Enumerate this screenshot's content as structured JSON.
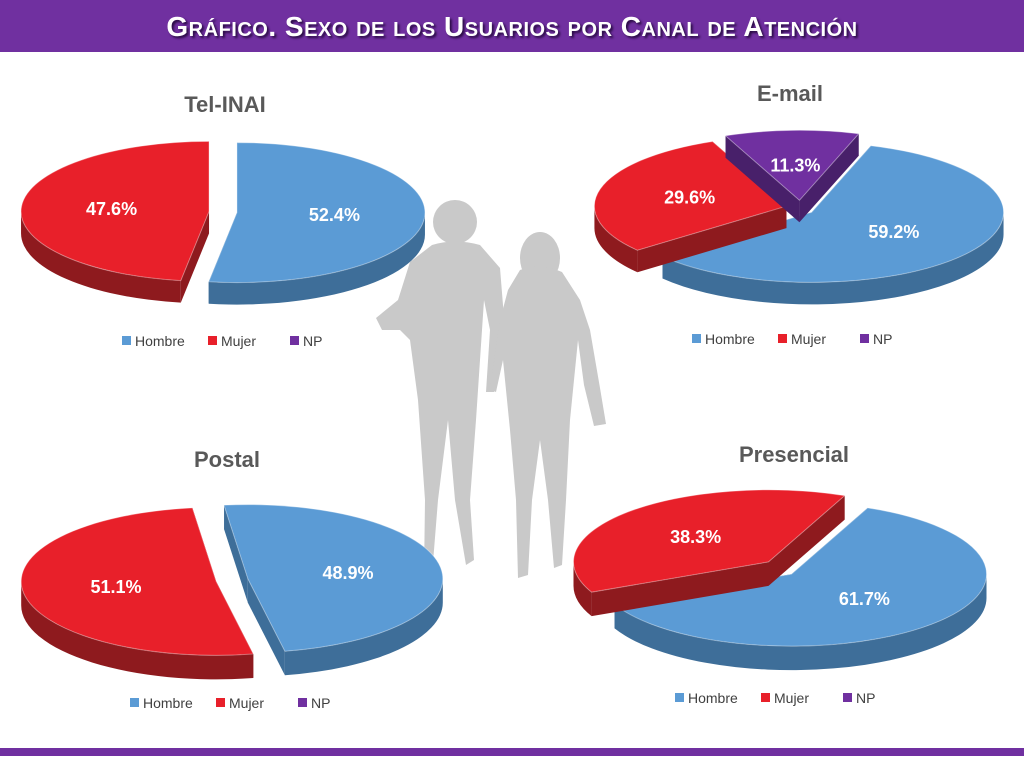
{
  "header": {
    "title": "Gráfico. Sexo de los Usuarios por Canal de Atención"
  },
  "colors": {
    "hombre": "#5b9bd5",
    "mujer": "#e8202a",
    "np": "#7030a0",
    "accent": "#7030a0"
  },
  "chart_data": [
    {
      "type": "pie",
      "title": "Tel-INAI",
      "categories": [
        "Hombre",
        "Mujer",
        "NP"
      ],
      "values": [
        52.4,
        47.6,
        0
      ],
      "data_labels": [
        "52.4%",
        "47.6%",
        ""
      ],
      "legend": [
        "Hombre",
        "Mujer",
        "NP"
      ],
      "legend_position": "bottom"
    },
    {
      "type": "pie",
      "title": "E-mail",
      "categories": [
        "Hombre",
        "Mujer",
        "NP"
      ],
      "values": [
        59.2,
        29.6,
        11.3
      ],
      "data_labels": [
        "59.2%",
        "29.6%",
        "11.3%"
      ],
      "legend": [
        "Hombre",
        "Mujer",
        "NP"
      ],
      "legend_position": "bottom"
    },
    {
      "type": "pie",
      "title": "Postal",
      "categories": [
        "Hombre",
        "Mujer",
        "NP"
      ],
      "values": [
        48.9,
        51.1,
        0
      ],
      "data_labels": [
        "48.9%",
        "51.1%",
        ""
      ],
      "legend": [
        "Hombre",
        "Mujer",
        "NP"
      ],
      "legend_position": "bottom"
    },
    {
      "type": "pie",
      "title": "Presencial",
      "categories": [
        "Hombre",
        "Mujer",
        "NP"
      ],
      "values": [
        61.7,
        38.3,
        0
      ],
      "data_labels": [
        "61.7%",
        "38.3%",
        ""
      ],
      "legend": [
        "Hombre",
        "Mujer",
        "NP"
      ],
      "legend_position": "bottom"
    }
  ]
}
